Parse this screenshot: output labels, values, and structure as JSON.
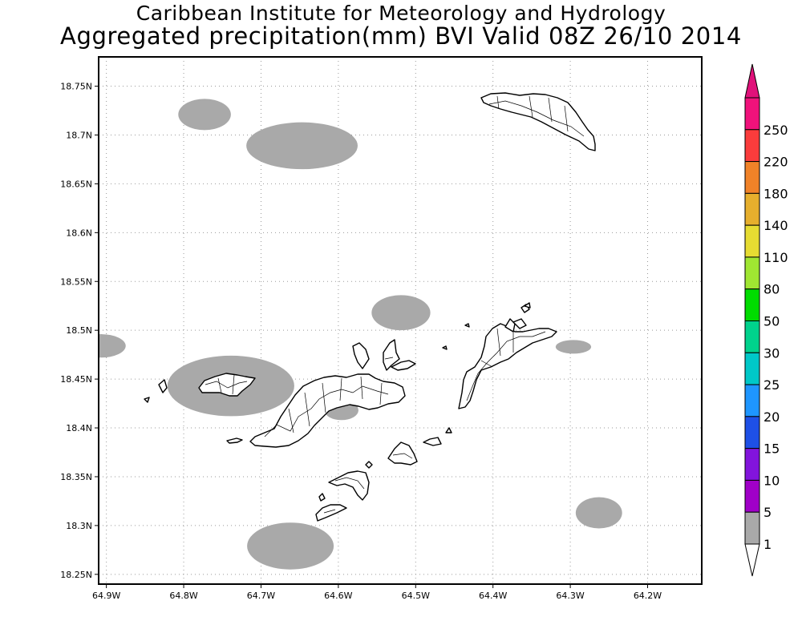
{
  "title": {
    "line1": "Caribbean Institute for Meteorology and Hydrology",
    "line2": "Aggregated precipitation(mm) BVI Valid 08Z 26/10 2014"
  },
  "map": {
    "lon_range": [
      -64.91,
      -64.13
    ],
    "lat_range": [
      18.24,
      18.78
    ],
    "lon_ticks": [
      {
        "value": -64.9,
        "label": "64.9W"
      },
      {
        "value": -64.8,
        "label": "64.8W"
      },
      {
        "value": -64.7,
        "label": "64.7W"
      },
      {
        "value": -64.6,
        "label": "64.6W"
      },
      {
        "value": -64.5,
        "label": "64.5W"
      },
      {
        "value": -64.4,
        "label": "64.4W"
      },
      {
        "value": -64.3,
        "label": "64.3W"
      },
      {
        "value": -64.2,
        "label": "64.2W"
      }
    ],
    "lat_ticks": [
      {
        "value": 18.25,
        "label": "18.25N"
      },
      {
        "value": 18.3,
        "label": "18.3N"
      },
      {
        "value": 18.35,
        "label": "18.35N"
      },
      {
        "value": 18.4,
        "label": "18.4N"
      },
      {
        "value": 18.45,
        "label": "18.45N"
      },
      {
        "value": 18.5,
        "label": "18.5N"
      },
      {
        "value": 18.55,
        "label": "18.55N"
      },
      {
        "value": 18.6,
        "label": "18.6N"
      },
      {
        "value": 18.65,
        "label": "18.65N"
      },
      {
        "value": 18.7,
        "label": "18.7N"
      },
      {
        "value": 18.75,
        "label": "18.75N"
      }
    ],
    "grid": "dotted",
    "precip_color": "#a9a9a9",
    "precip_class": "1-5 mm",
    "precip_areas": [
      {
        "lon": -64.773,
        "lat": 18.721,
        "rlon": 0.034,
        "rlat": 0.016
      },
      {
        "lon": -64.647,
        "lat": 18.689,
        "rlon": 0.072,
        "rlat": 0.024
      },
      {
        "lon": -64.519,
        "lat": 18.518,
        "rlon": 0.038,
        "rlat": 0.018
      },
      {
        "lon": -64.907,
        "lat": 18.484,
        "rlon": 0.032,
        "rlat": 0.012
      },
      {
        "lon": -64.739,
        "lat": 18.443,
        "rlon": 0.082,
        "rlat": 0.031
      },
      {
        "lon": -64.596,
        "lat": 18.418,
        "rlon": 0.022,
        "rlat": 0.01
      },
      {
        "lon": -64.296,
        "lat": 18.483,
        "rlon": 0.023,
        "rlat": 0.007
      },
      {
        "lon": -64.263,
        "lat": 18.313,
        "rlon": 0.03,
        "rlat": 0.016
      },
      {
        "lon": -64.662,
        "lat": 18.279,
        "rlon": 0.056,
        "rlat": 0.024
      }
    ]
  },
  "colorbar": {
    "levels": [
      {
        "label": "250",
        "color": "#f0127b"
      },
      {
        "label": "220",
        "color": "#fa3c3c"
      },
      {
        "label": "180",
        "color": "#f08228"
      },
      {
        "label": "140",
        "color": "#e6af2d"
      },
      {
        "label": "110",
        "color": "#e6dc32"
      },
      {
        "label": "80",
        "color": "#a0e632"
      },
      {
        "label": "50",
        "color": "#00dc00"
      },
      {
        "label": "30",
        "color": "#00d28c"
      },
      {
        "label": "25",
        "color": "#00c8c8"
      },
      {
        "label": "20",
        "color": "#1e96ff"
      },
      {
        "label": "15",
        "color": "#1e50e6"
      },
      {
        "label": "10",
        "color": "#8214dc"
      },
      {
        "label": "5",
        "color": "#a000c8"
      },
      {
        "label": "1",
        "color": "#a9a9a9"
      }
    ],
    "top_color": "#e0117a",
    "bottom_color": "#ffffff"
  }
}
